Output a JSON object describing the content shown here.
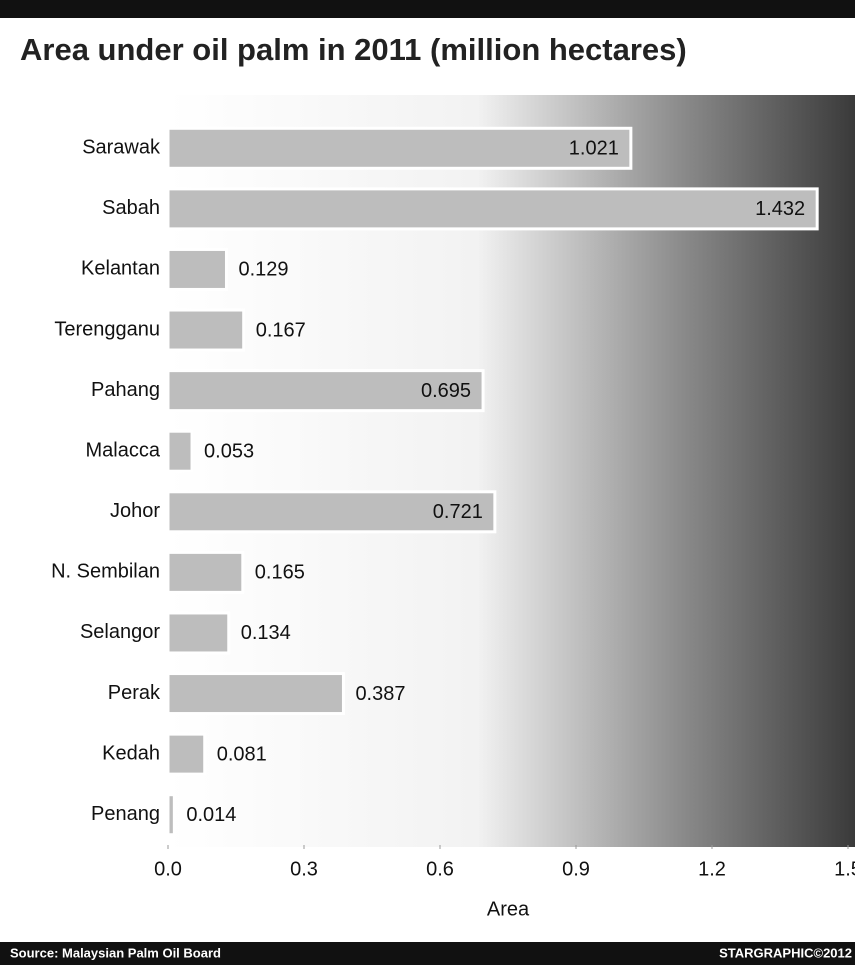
{
  "chart_data": {
    "type": "barh",
    "title": "Area under oil palm in 2011 (million hectares)",
    "categories": [
      "Sarawak",
      "Sabah",
      "Kelantan",
      "Terengganu",
      "Pahang",
      "Malacca",
      "Johor",
      "N. Sembilan",
      "Selangor",
      "Perak",
      "Kedah",
      "Penang"
    ],
    "values": [
      1.021,
      1.432,
      0.129,
      0.167,
      0.695,
      0.053,
      0.721,
      0.165,
      0.134,
      0.387,
      0.081,
      0.014
    ],
    "color": "#bdbdbd",
    "xlim": [
      0,
      1.5
    ],
    "xticks": [
      {
        "value": 0,
        "label": "0.0"
      },
      0.3,
      0.6,
      0.9,
      1.2,
      1.5
    ],
    "xlabel": "Area",
    "grid": false,
    "source": "Source: Malaysian Palm Oil Board",
    "credit": "STARGRAPHIC©2012"
  }
}
